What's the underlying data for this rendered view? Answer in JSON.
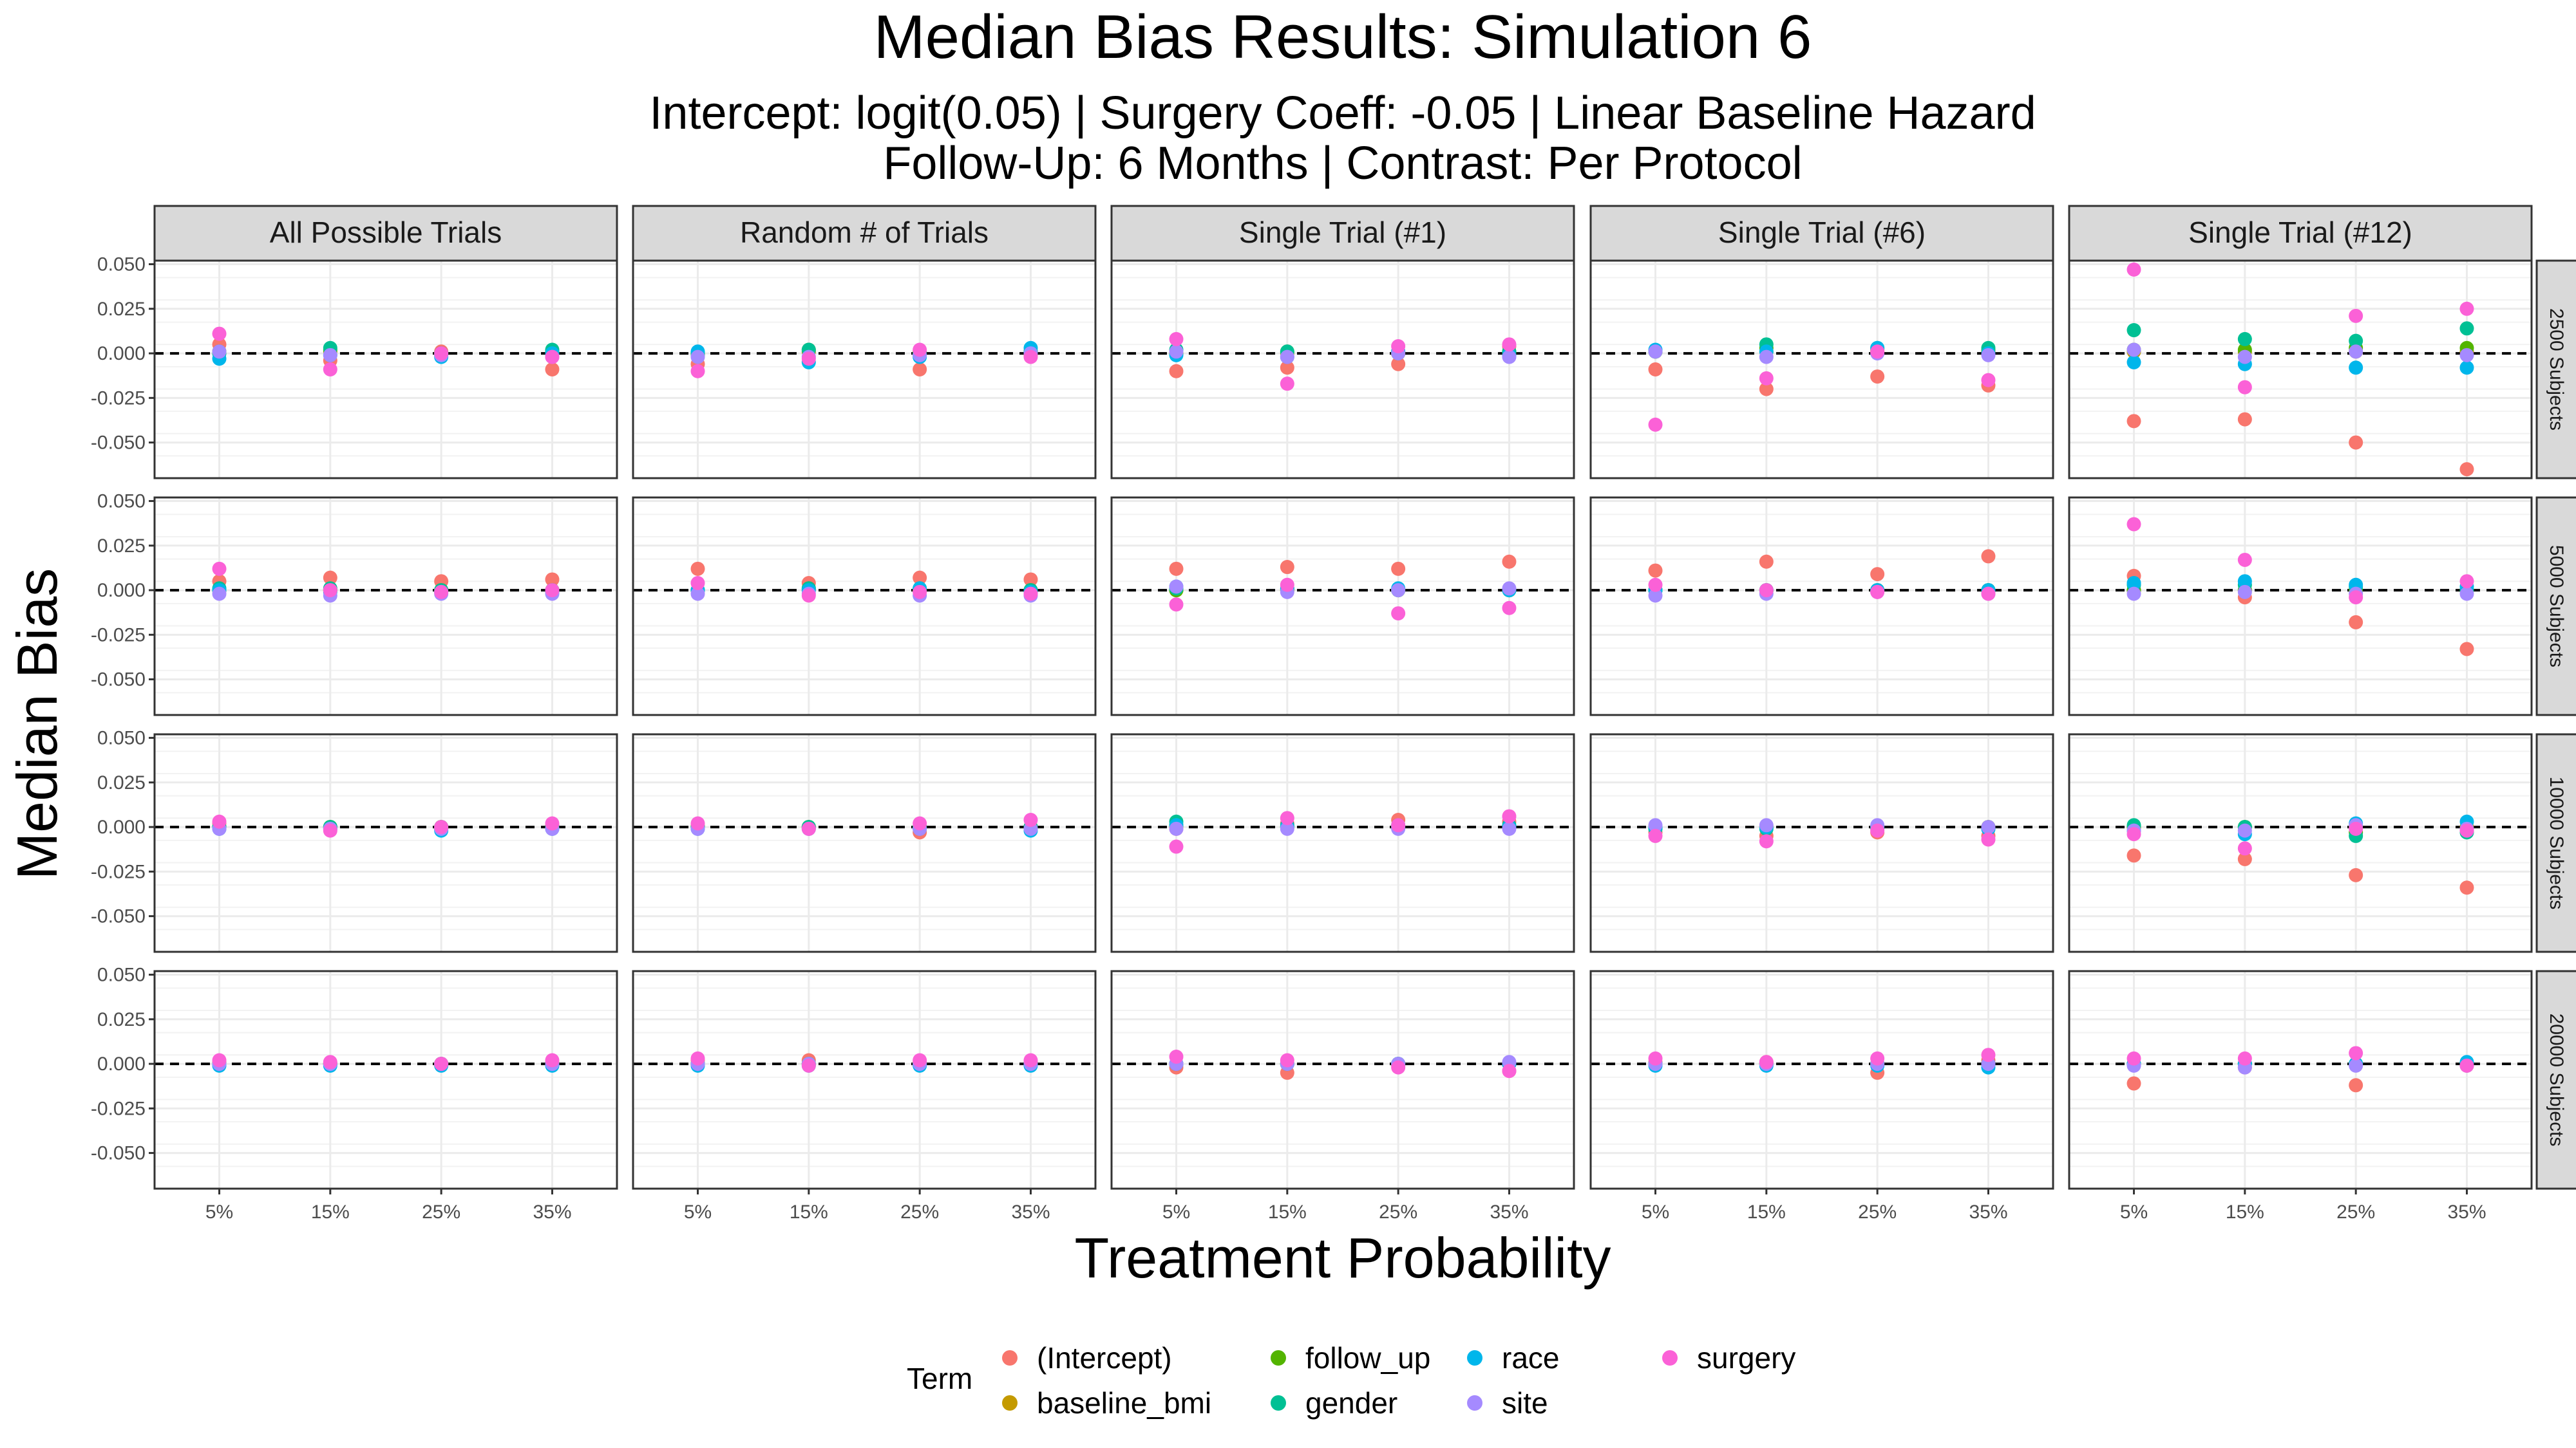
{
  "chart_data": {
    "type": "scatter",
    "title": "Median Bias Results: Simulation 6",
    "subtitle_lines": [
      "Intercept: logit(0.05) | Surgery Coeff: -0.05 | Linear Baseline Hazard",
      "Follow-Up: 6 Months | Contrast: Per Protocol"
    ],
    "xlabel": "Treatment Probability",
    "ylabel": "Median Bias",
    "x_categories": [
      "5%",
      "15%",
      "25%",
      "35%"
    ],
    "y_ticks": [
      "0.050",
      "0.025",
      "0.000",
      "-0.025",
      "-0.050"
    ],
    "y_tick_values": [
      0.05,
      0.025,
      0.0,
      -0.025,
      -0.05
    ],
    "ylim": [
      -0.07,
      0.052
    ],
    "reference_line": 0,
    "column_facets": [
      "All Possible Trials",
      "Random # of Trials",
      "Single Trial (#1)",
      "Single Trial (#6)",
      "Single Trial (#12)"
    ],
    "row_facets": [
      "2500 Subjects",
      "5000 Subjects",
      "10000 Subjects",
      "20000 Subjects"
    ],
    "legend": {
      "title": "Term",
      "position": "bottom",
      "columns": [
        [
          "(Intercept)",
          "baseline_bmi"
        ],
        [
          "follow_up",
          "gender"
        ],
        [
          "race",
          "site"
        ],
        [
          "surgery"
        ]
      ]
    },
    "terms": [
      "(Intercept)",
      "baseline_bmi",
      "follow_up",
      "gender",
      "race",
      "site",
      "surgery"
    ],
    "colors": {
      "(Intercept)": "#F8766D",
      "baseline_bmi": "#C49A00",
      "follow_up": "#53B400",
      "gender": "#00C094",
      "race": "#00B6EB",
      "site": "#A58AFF",
      "surgery": "#FB61D7"
    },
    "panels": [
      [
        {
          "(Intercept)": [
            0.005,
            -0.004,
            0.001,
            -0.009
          ],
          "baseline_bmi": [
            0.001,
            0.001,
            0.0,
            0.001
          ],
          "follow_up": [
            0.001,
            0.002,
            0.0,
            0.001
          ],
          "gender": [
            0.0,
            0.003,
            0.0,
            0.002
          ],
          "race": [
            -0.003,
            -0.001,
            -0.002,
            0.0
          ],
          "site": [
            0.001,
            -0.001,
            -0.001,
            -0.002
          ],
          "surgery": [
            0.011,
            -0.009,
            0.0,
            -0.002
          ]
        },
        {
          "(Intercept)": [
            -0.006,
            0.001,
            -0.009,
            -0.001
          ],
          "baseline_bmi": [
            0.0,
            0.001,
            0.001,
            0.0
          ],
          "follow_up": [
            0.0,
            0.002,
            0.0,
            0.001
          ],
          "gender": [
            -0.001,
            0.002,
            0.0,
            0.001
          ],
          "race": [
            0.001,
            -0.005,
            -0.002,
            0.003
          ],
          "site": [
            -0.002,
            -0.002,
            -0.001,
            0.0
          ],
          "surgery": [
            -0.01,
            -0.003,
            0.002,
            -0.002
          ]
        },
        {
          "(Intercept)": [
            -0.01,
            -0.008,
            -0.006,
            0.004
          ],
          "baseline_bmi": [
            0.0,
            0.0,
            0.0,
            0.0
          ],
          "follow_up": [
            0.0,
            0.001,
            0.0,
            0.001
          ],
          "gender": [
            0.002,
            0.001,
            0.001,
            0.001
          ],
          "race": [
            -0.001,
            -0.002,
            0.001,
            -0.001
          ],
          "site": [
            0.001,
            -0.002,
            0.0,
            -0.002
          ],
          "surgery": [
            0.008,
            -0.017,
            0.004,
            0.005
          ]
        },
        {
          "(Intercept)": [
            -0.009,
            -0.02,
            -0.013,
            -0.018
          ],
          "baseline_bmi": [
            0.001,
            0.001,
            0.001,
            0.001
          ],
          "follow_up": [
            0.001,
            0.003,
            0.002,
            0.002
          ],
          "gender": [
            0.001,
            0.005,
            0.003,
            0.003
          ],
          "race": [
            0.002,
            0.001,
            0.003,
            0.0
          ],
          "site": [
            0.001,
            -0.002,
            0.0,
            -0.001
          ],
          "surgery": [
            -0.04,
            -0.014,
            0.001,
            -0.015
          ]
        },
        {
          "(Intercept)": [
            -0.038,
            -0.037,
            -0.05,
            -0.065
          ],
          "baseline_bmi": [
            0.001,
            0.001,
            0.001,
            0.001
          ],
          "follow_up": [
            0.002,
            0.002,
            0.003,
            0.003
          ],
          "gender": [
            0.013,
            0.008,
            0.007,
            0.014
          ],
          "race": [
            -0.005,
            -0.006,
            -0.008,
            -0.008
          ],
          "site": [
            0.002,
            -0.002,
            0.001,
            -0.001
          ],
          "surgery": [
            0.047,
            -0.019,
            0.021,
            0.025
          ]
        }
      ],
      [
        {
          "(Intercept)": [
            0.005,
            0.007,
            0.005,
            0.006
          ],
          "baseline_bmi": [
            0.0,
            0.0,
            0.0,
            0.0
          ],
          "follow_up": [
            0.0,
            0.0,
            0.0,
            0.0
          ],
          "gender": [
            0.001,
            0.001,
            0.0,
            0.0
          ],
          "race": [
            0.0,
            -0.001,
            -0.001,
            -0.001
          ],
          "site": [
            -0.002,
            -0.003,
            -0.002,
            -0.002
          ],
          "surgery": [
            0.012,
            0.0,
            -0.001,
            0.0
          ]
        },
        {
          "(Intercept)": [
            0.012,
            0.004,
            0.007,
            0.006
          ],
          "baseline_bmi": [
            0.0,
            0.0,
            0.0,
            0.0
          ],
          "follow_up": [
            0.0,
            0.001,
            0.0,
            0.0
          ],
          "gender": [
            0.0,
            0.001,
            0.001,
            0.0
          ],
          "race": [
            0.0,
            0.0,
            0.001,
            -0.001
          ],
          "site": [
            -0.002,
            -0.002,
            -0.003,
            -0.003
          ],
          "surgery": [
            0.004,
            -0.003,
            -0.001,
            -0.002
          ]
        },
        {
          "(Intercept)": [
            0.012,
            0.013,
            0.012,
            0.016
          ],
          "baseline_bmi": [
            0.0,
            0.0,
            0.0,
            0.0
          ],
          "follow_up": [
            0.0,
            0.0,
            0.0,
            0.0
          ],
          "gender": [
            0.001,
            0.001,
            0.0,
            0.0
          ],
          "race": [
            0.002,
            0.001,
            0.001,
            0.0
          ],
          "site": [
            0.002,
            -0.001,
            0.0,
            0.001
          ],
          "surgery": [
            -0.008,
            0.003,
            -0.013,
            -0.01
          ]
        },
        {
          "(Intercept)": [
            0.011,
            0.016,
            0.009,
            0.019
          ],
          "baseline_bmi": [
            0.0,
            0.0,
            0.0,
            0.0
          ],
          "follow_up": [
            0.0,
            0.0,
            0.0,
            0.0
          ],
          "gender": [
            0.0,
            0.0,
            0.0,
            0.0
          ],
          "race": [
            0.0,
            0.0,
            0.0,
            0.0
          ],
          "site": [
            -0.003,
            -0.002,
            -0.001,
            -0.002
          ],
          "surgery": [
            0.003,
            0.0,
            -0.001,
            -0.002
          ]
        },
        {
          "(Intercept)": [
            0.008,
            -0.004,
            -0.018,
            -0.033
          ],
          "baseline_bmi": [
            0.0,
            0.0,
            0.0,
            0.0
          ],
          "follow_up": [
            0.0,
            0.0,
            0.0,
            0.0
          ],
          "gender": [
            0.003,
            0.003,
            0.002,
            0.0
          ],
          "race": [
            0.004,
            0.005,
            0.003,
            0.002
          ],
          "site": [
            -0.002,
            -0.001,
            -0.002,
            -0.002
          ],
          "surgery": [
            0.037,
            0.017,
            -0.004,
            0.005
          ]
        }
      ],
      [
        {
          "(Intercept)": [
            0.002,
            0.0,
            -0.001,
            0.001
          ],
          "baseline_bmi": [
            0.0,
            0.0,
            0.0,
            0.0
          ],
          "follow_up": [
            0.0,
            0.0,
            0.0,
            0.0
          ],
          "gender": [
            0.0,
            0.0,
            0.0,
            0.0
          ],
          "race": [
            -0.001,
            -0.001,
            -0.002,
            -0.001
          ],
          "site": [
            -0.001,
            -0.001,
            -0.001,
            -0.001
          ],
          "surgery": [
            0.003,
            -0.002,
            0.0,
            0.002
          ]
        },
        {
          "(Intercept)": [
            0.001,
            0.0,
            -0.003,
            0.0
          ],
          "baseline_bmi": [
            0.0,
            0.0,
            0.0,
            0.0
          ],
          "follow_up": [
            0.0,
            0.0,
            0.0,
            0.0
          ],
          "gender": [
            0.0,
            0.0,
            0.0,
            0.0
          ],
          "race": [
            -0.001,
            -0.001,
            -0.001,
            -0.002
          ],
          "site": [
            -0.001,
            -0.001,
            -0.001,
            -0.001
          ],
          "surgery": [
            0.002,
            -0.001,
            0.002,
            0.004
          ]
        },
        {
          "(Intercept)": [
            -0.001,
            0.002,
            0.004,
            0.003
          ],
          "baseline_bmi": [
            0.0,
            0.0,
            0.0,
            0.0
          ],
          "follow_up": [
            0.001,
            0.0,
            0.0,
            0.0
          ],
          "gender": [
            0.003,
            0.001,
            0.001,
            0.001
          ],
          "race": [
            0.001,
            0.0,
            0.0,
            0.0
          ],
          "site": [
            -0.001,
            -0.001,
            -0.001,
            -0.001
          ],
          "surgery": [
            -0.011,
            0.005,
            0.001,
            0.006
          ]
        },
        {
          "(Intercept)": [
            -0.003,
            -0.005,
            -0.003,
            -0.005
          ],
          "baseline_bmi": [
            0.0,
            0.0,
            0.0,
            0.0
          ],
          "follow_up": [
            0.0,
            0.0,
            0.0,
            0.0
          ],
          "gender": [
            -0.001,
            -0.001,
            -0.001,
            -0.001
          ],
          "race": [
            0.0,
            0.0,
            0.0,
            -0.001
          ],
          "site": [
            0.001,
            0.001,
            0.001,
            0.0
          ],
          "surgery": [
            -0.005,
            -0.008,
            -0.002,
            -0.007
          ]
        },
        {
          "(Intercept)": [
            -0.016,
            -0.018,
            -0.027,
            -0.034
          ],
          "baseline_bmi": [
            0.0,
            0.0,
            0.0,
            0.0
          ],
          "follow_up": [
            0.0,
            0.0,
            -0.003,
            -0.002
          ],
          "gender": [
            0.001,
            0.0,
            -0.005,
            -0.003
          ],
          "race": [
            -0.002,
            -0.004,
            0.002,
            0.003
          ],
          "site": [
            -0.002,
            -0.002,
            0.001,
            -0.001
          ],
          "surgery": [
            -0.004,
            -0.012,
            -0.001,
            -0.002
          ]
        }
      ],
      [
        {
          "(Intercept)": [
            0.001,
            0.0,
            0.0,
            0.001
          ],
          "baseline_bmi": [
            0.0,
            0.0,
            0.0,
            0.0
          ],
          "follow_up": [
            0.0,
            0.0,
            0.0,
            0.0
          ],
          "gender": [
            0.0,
            0.0,
            0.0,
            0.0
          ],
          "race": [
            -0.001,
            -0.001,
            -0.001,
            -0.001
          ],
          "site": [
            0.0,
            0.0,
            0.0,
            0.0
          ],
          "surgery": [
            0.002,
            0.001,
            0.0,
            0.002
          ]
        },
        {
          "(Intercept)": [
            0.002,
            0.002,
            0.001,
            0.001
          ],
          "baseline_bmi": [
            0.0,
            0.0,
            0.0,
            0.0
          ],
          "follow_up": [
            0.0,
            0.0,
            0.0,
            0.0
          ],
          "gender": [
            0.0,
            0.0,
            0.0,
            0.0
          ],
          "race": [
            -0.001,
            -0.001,
            -0.001,
            -0.001
          ],
          "site": [
            0.0,
            0.0,
            0.0,
            0.0
          ],
          "surgery": [
            0.003,
            -0.001,
            0.002,
            0.002
          ]
        },
        {
          "(Intercept)": [
            -0.002,
            -0.005,
            -0.001,
            -0.004
          ],
          "baseline_bmi": [
            0.0,
            0.0,
            0.0,
            0.0
          ],
          "follow_up": [
            0.0,
            0.0,
            0.0,
            0.0
          ],
          "gender": [
            0.0,
            0.0,
            0.0,
            0.0
          ],
          "race": [
            0.0,
            0.0,
            0.0,
            0.0
          ],
          "site": [
            0.0,
            0.0,
            0.0,
            0.001
          ],
          "surgery": [
            0.004,
            0.002,
            -0.002,
            -0.004
          ]
        },
        {
          "(Intercept)": [
            0.001,
            0.001,
            -0.005,
            0.002
          ],
          "baseline_bmi": [
            0.0,
            0.0,
            0.0,
            0.0
          ],
          "follow_up": [
            0.0,
            0.0,
            0.0,
            0.0
          ],
          "gender": [
            0.0,
            0.0,
            0.0,
            0.0
          ],
          "race": [
            -0.001,
            -0.001,
            -0.001,
            -0.002
          ],
          "site": [
            0.0,
            0.0,
            0.0,
            0.0
          ],
          "surgery": [
            0.003,
            0.001,
            0.003,
            0.005
          ]
        },
        {
          "(Intercept)": [
            -0.011,
            -0.002,
            -0.012,
            -0.001
          ],
          "baseline_bmi": [
            0.0,
            0.0,
            0.0,
            0.0
          ],
          "follow_up": [
            0.0,
            0.0,
            0.0,
            0.0
          ],
          "gender": [
            0.0,
            0.0,
            0.0,
            0.0
          ],
          "race": [
            0.0,
            0.0,
            0.0,
            0.001
          ],
          "site": [
            -0.001,
            -0.002,
            -0.001,
            -0.001
          ],
          "surgery": [
            0.003,
            0.003,
            0.006,
            -0.001
          ]
        }
      ]
    ]
  }
}
